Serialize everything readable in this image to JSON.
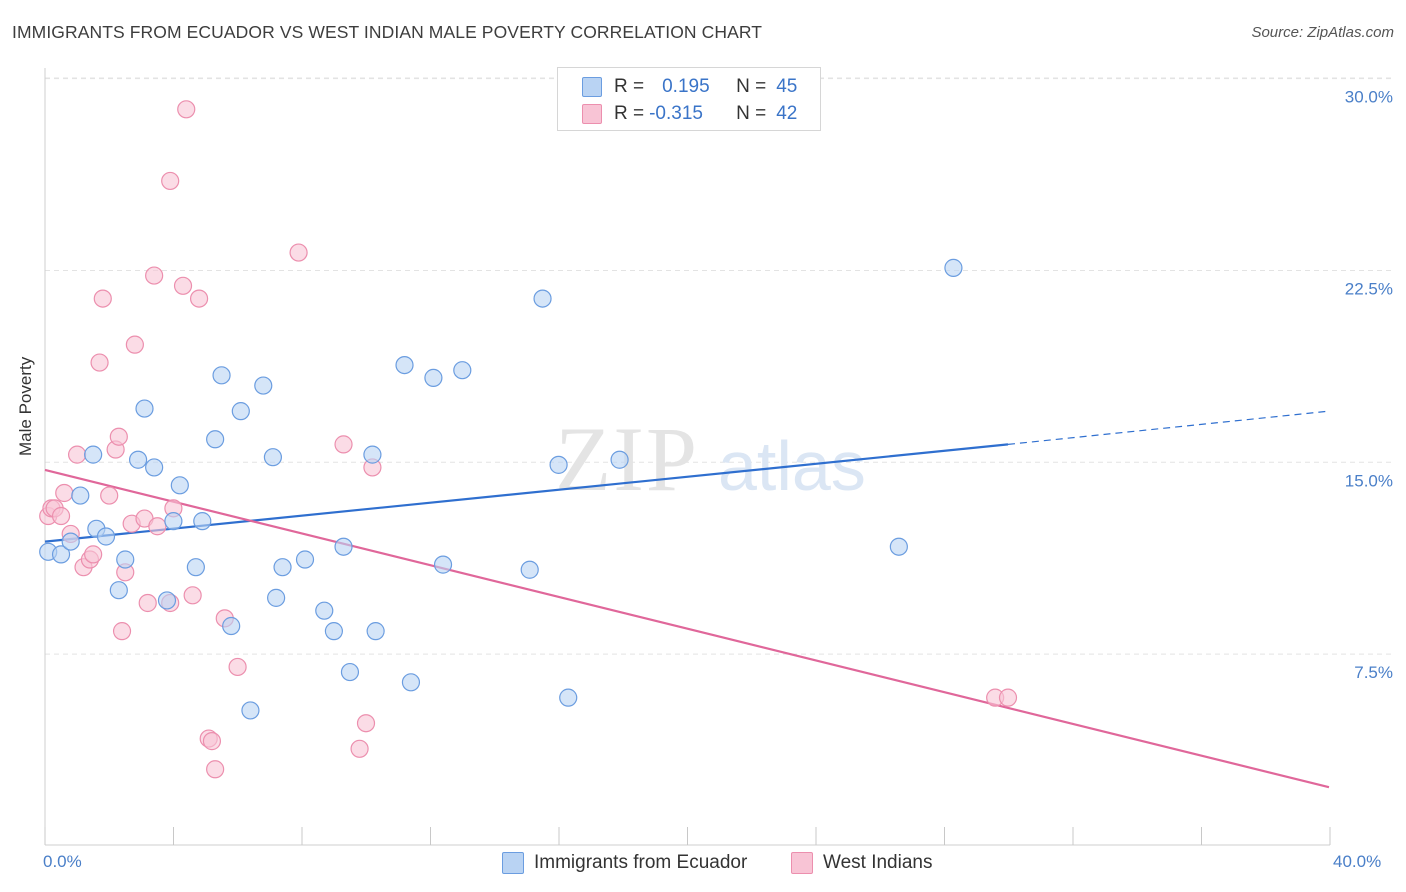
{
  "title": "IMMIGRANTS FROM ECUADOR VS WEST INDIAN MALE POVERTY CORRELATION CHART",
  "source": "Source: ZipAtlas.com",
  "watermark": {
    "zip": "ZIP",
    "atlas": "atlas"
  },
  "legend": {
    "rows": [
      {
        "r_label": "R =",
        "r_value": "0.195",
        "n_label": "N =",
        "n_value": "45"
      },
      {
        "r_label": "R =",
        "r_value": "-0.315",
        "n_label": "N =",
        "n_value": "42"
      }
    ]
  },
  "colors": {
    "blue_fill": "#b9d3f3",
    "blue_edge": "#6b9de0",
    "blue_line": "#2f6fcf",
    "pink_fill": "#f8c4d5",
    "pink_edge": "#ec8fae",
    "pink_line": "#e0679a",
    "axis_text": "#4a7fc8",
    "grid": "#e3e3e3"
  },
  "chart_data": {
    "type": "scatter",
    "title": "IMMIGRANTS FROM ECUADOR VS WEST INDIAN MALE POVERTY CORRELATION CHART",
    "xlabel": "",
    "ylabel": "Male Poverty",
    "xlim": [
      0,
      40
    ],
    "ylim": [
      0,
      31
    ],
    "x_tick_labels": [
      "0.0%",
      "40.0%"
    ],
    "y_ticks": [
      7.5,
      15.0,
      22.5,
      30.0
    ],
    "y_tick_labels": [
      "7.5%",
      "15.0%",
      "22.5%",
      "30.0%"
    ],
    "grid": true,
    "legend_position": "top-center",
    "series": [
      {
        "name": "Immigrants from Ecuador",
        "color": "#6b9de0",
        "r": 0.195,
        "n": 45,
        "trend": {
          "x": [
            0.0,
            30.0
          ],
          "y": [
            11.9,
            15.7
          ],
          "dashed_extension": {
            "x": [
              30.0,
              40.0
            ],
            "y": [
              15.7,
              17.0
            ]
          }
        },
        "points": [
          [
            0.1,
            11.5
          ],
          [
            0.5,
            11.4
          ],
          [
            0.8,
            11.9
          ],
          [
            1.1,
            13.7
          ],
          [
            1.5,
            15.3
          ],
          [
            1.6,
            12.4
          ],
          [
            1.9,
            12.1
          ],
          [
            2.3,
            10.0
          ],
          [
            2.5,
            11.2
          ],
          [
            2.9,
            15.1
          ],
          [
            3.1,
            17.1
          ],
          [
            3.4,
            14.8
          ],
          [
            3.8,
            9.6
          ],
          [
            4.0,
            12.7
          ],
          [
            4.2,
            14.1
          ],
          [
            4.7,
            10.9
          ],
          [
            4.9,
            12.7
          ],
          [
            5.3,
            15.9
          ],
          [
            5.5,
            18.4
          ],
          [
            5.8,
            8.6
          ],
          [
            6.1,
            17.0
          ],
          [
            6.4,
            5.3
          ],
          [
            6.8,
            18.0
          ],
          [
            7.1,
            15.2
          ],
          [
            7.2,
            9.7
          ],
          [
            7.4,
            10.9
          ],
          [
            8.1,
            11.2
          ],
          [
            8.7,
            9.2
          ],
          [
            9.0,
            8.4
          ],
          [
            9.3,
            11.7
          ],
          [
            9.5,
            6.8
          ],
          [
            10.2,
            15.3
          ],
          [
            10.3,
            8.4
          ],
          [
            11.2,
            18.8
          ],
          [
            11.4,
            6.4
          ],
          [
            12.1,
            18.3
          ],
          [
            12.4,
            11.0
          ],
          [
            13.0,
            18.6
          ],
          [
            15.1,
            10.8
          ],
          [
            15.5,
            21.4
          ],
          [
            16.0,
            14.9
          ],
          [
            16.3,
            5.8
          ],
          [
            17.9,
            15.1
          ],
          [
            26.6,
            11.7
          ],
          [
            28.3,
            22.6
          ]
        ]
      },
      {
        "name": "West Indians",
        "color": "#ec8fae",
        "r": -0.315,
        "n": 42,
        "trend": {
          "x": [
            0.0,
            40.0
          ],
          "y": [
            14.7,
            2.3
          ]
        },
        "points": [
          [
            0.1,
            12.9
          ],
          [
            0.2,
            13.2
          ],
          [
            0.3,
            13.2
          ],
          [
            0.5,
            12.9
          ],
          [
            0.6,
            13.8
          ],
          [
            0.8,
            12.2
          ],
          [
            1.0,
            15.3
          ],
          [
            1.2,
            10.9
          ],
          [
            1.4,
            11.2
          ],
          [
            1.5,
            11.4
          ],
          [
            1.7,
            18.9
          ],
          [
            1.8,
            21.4
          ],
          [
            2.0,
            13.7
          ],
          [
            2.2,
            15.5
          ],
          [
            2.3,
            16.0
          ],
          [
            2.4,
            8.4
          ],
          [
            2.5,
            10.7
          ],
          [
            2.7,
            12.6
          ],
          [
            2.8,
            19.6
          ],
          [
            3.1,
            12.8
          ],
          [
            3.2,
            9.5
          ],
          [
            3.4,
            22.3
          ],
          [
            3.5,
            12.5
          ],
          [
            3.9,
            9.5
          ],
          [
            3.9,
            26.0
          ],
          [
            4.0,
            13.2
          ],
          [
            4.3,
            21.9
          ],
          [
            4.4,
            28.8
          ],
          [
            4.6,
            9.8
          ],
          [
            4.8,
            21.4
          ],
          [
            5.1,
            4.2
          ],
          [
            5.2,
            4.1
          ],
          [
            5.3,
            3.0
          ],
          [
            5.6,
            8.9
          ],
          [
            6.0,
            7.0
          ],
          [
            7.9,
            23.2
          ],
          [
            9.3,
            15.7
          ],
          [
            9.8,
            3.8
          ],
          [
            10.0,
            4.8
          ],
          [
            10.2,
            14.8
          ],
          [
            29.6,
            5.8
          ],
          [
            30.0,
            5.8
          ]
        ]
      }
    ]
  }
}
